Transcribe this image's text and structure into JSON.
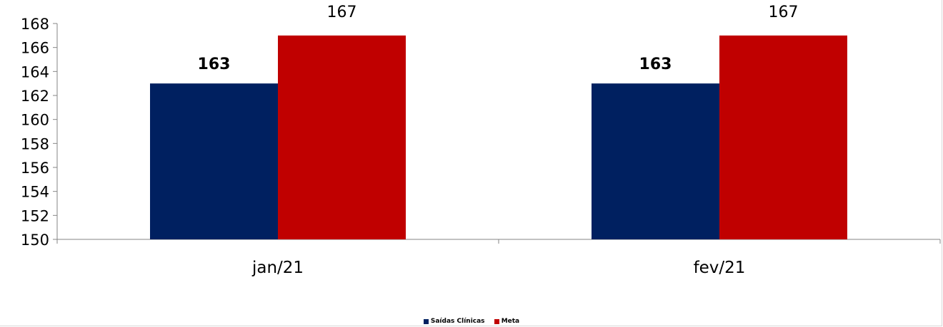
{
  "chart_data": {
    "type": "bar",
    "categories": [
      "jan/21",
      "fev/21"
    ],
    "series": [
      {
        "name": "Saídas Clínicas",
        "values": [
          163,
          163
        ],
        "color": "#002060",
        "labels": [
          "163",
          "163"
        ],
        "label_bold": true
      },
      {
        "name": "Meta",
        "values": [
          167,
          167
        ],
        "color": "#C00000",
        "labels": [
          "167",
          "167"
        ],
        "label_bold": false
      }
    ],
    "yticks": [
      "150",
      "152",
      "154",
      "156",
      "158",
      "160",
      "162",
      "164",
      "166",
      "168"
    ],
    "ylim": [
      150,
      168
    ],
    "grid": false,
    "legend_position": "bottom"
  }
}
